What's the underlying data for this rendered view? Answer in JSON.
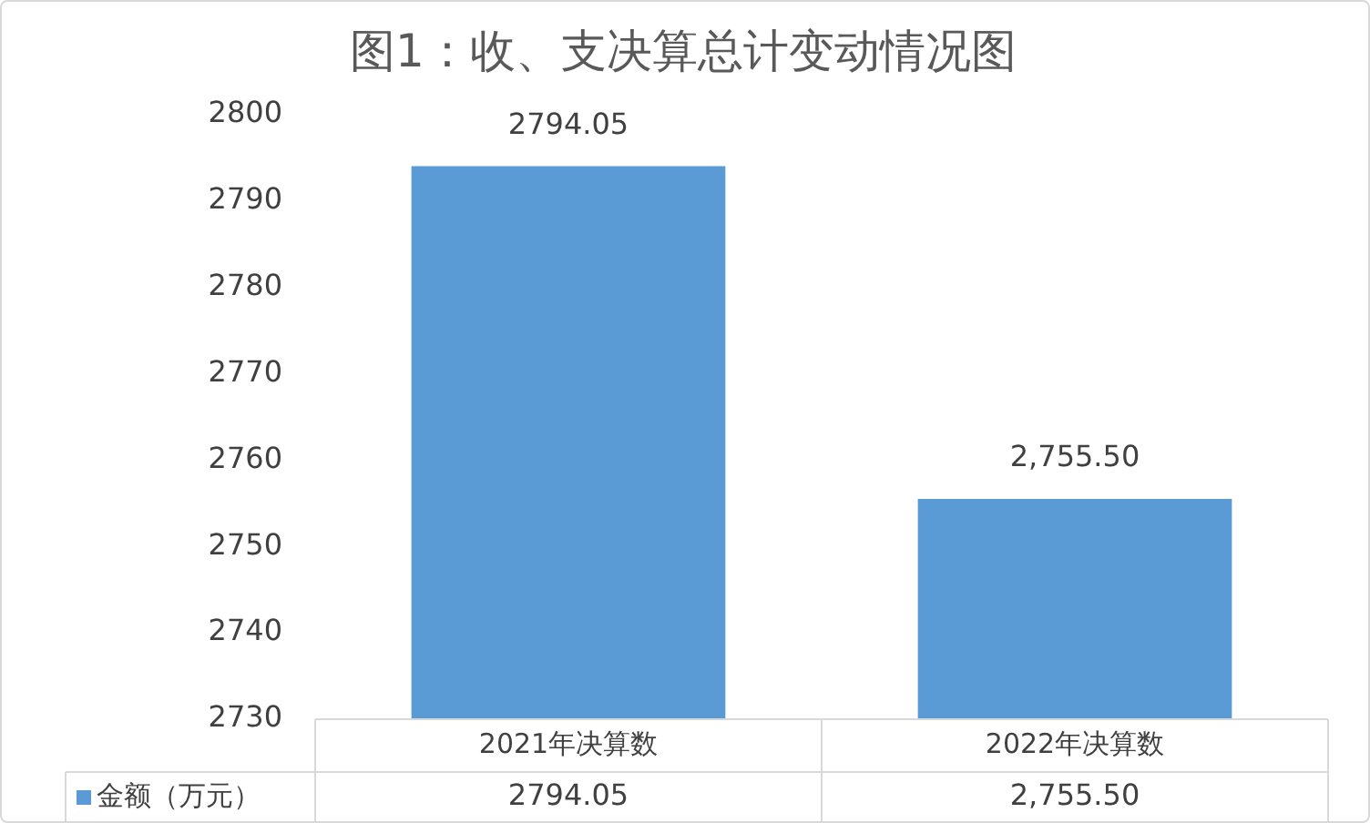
{
  "chart_data": {
    "type": "bar",
    "title": "图1：收、支决算总计变动情况图",
    "categories": [
      "2021年决算数",
      "2022年决算数"
    ],
    "series": [
      {
        "name": "金额（万元）",
        "color": "#5b9bd5",
        "values": [
          2794.05,
          2755.5
        ],
        "value_labels": [
          "2794.05",
          "2,755.50"
        ]
      }
    ],
    "ylim": [
      2730,
      2800
    ],
    "yticks": [
      2730,
      2740,
      2750,
      2760,
      2770,
      2780,
      2790,
      2800
    ],
    "grid": false,
    "legend": "bottom"
  }
}
